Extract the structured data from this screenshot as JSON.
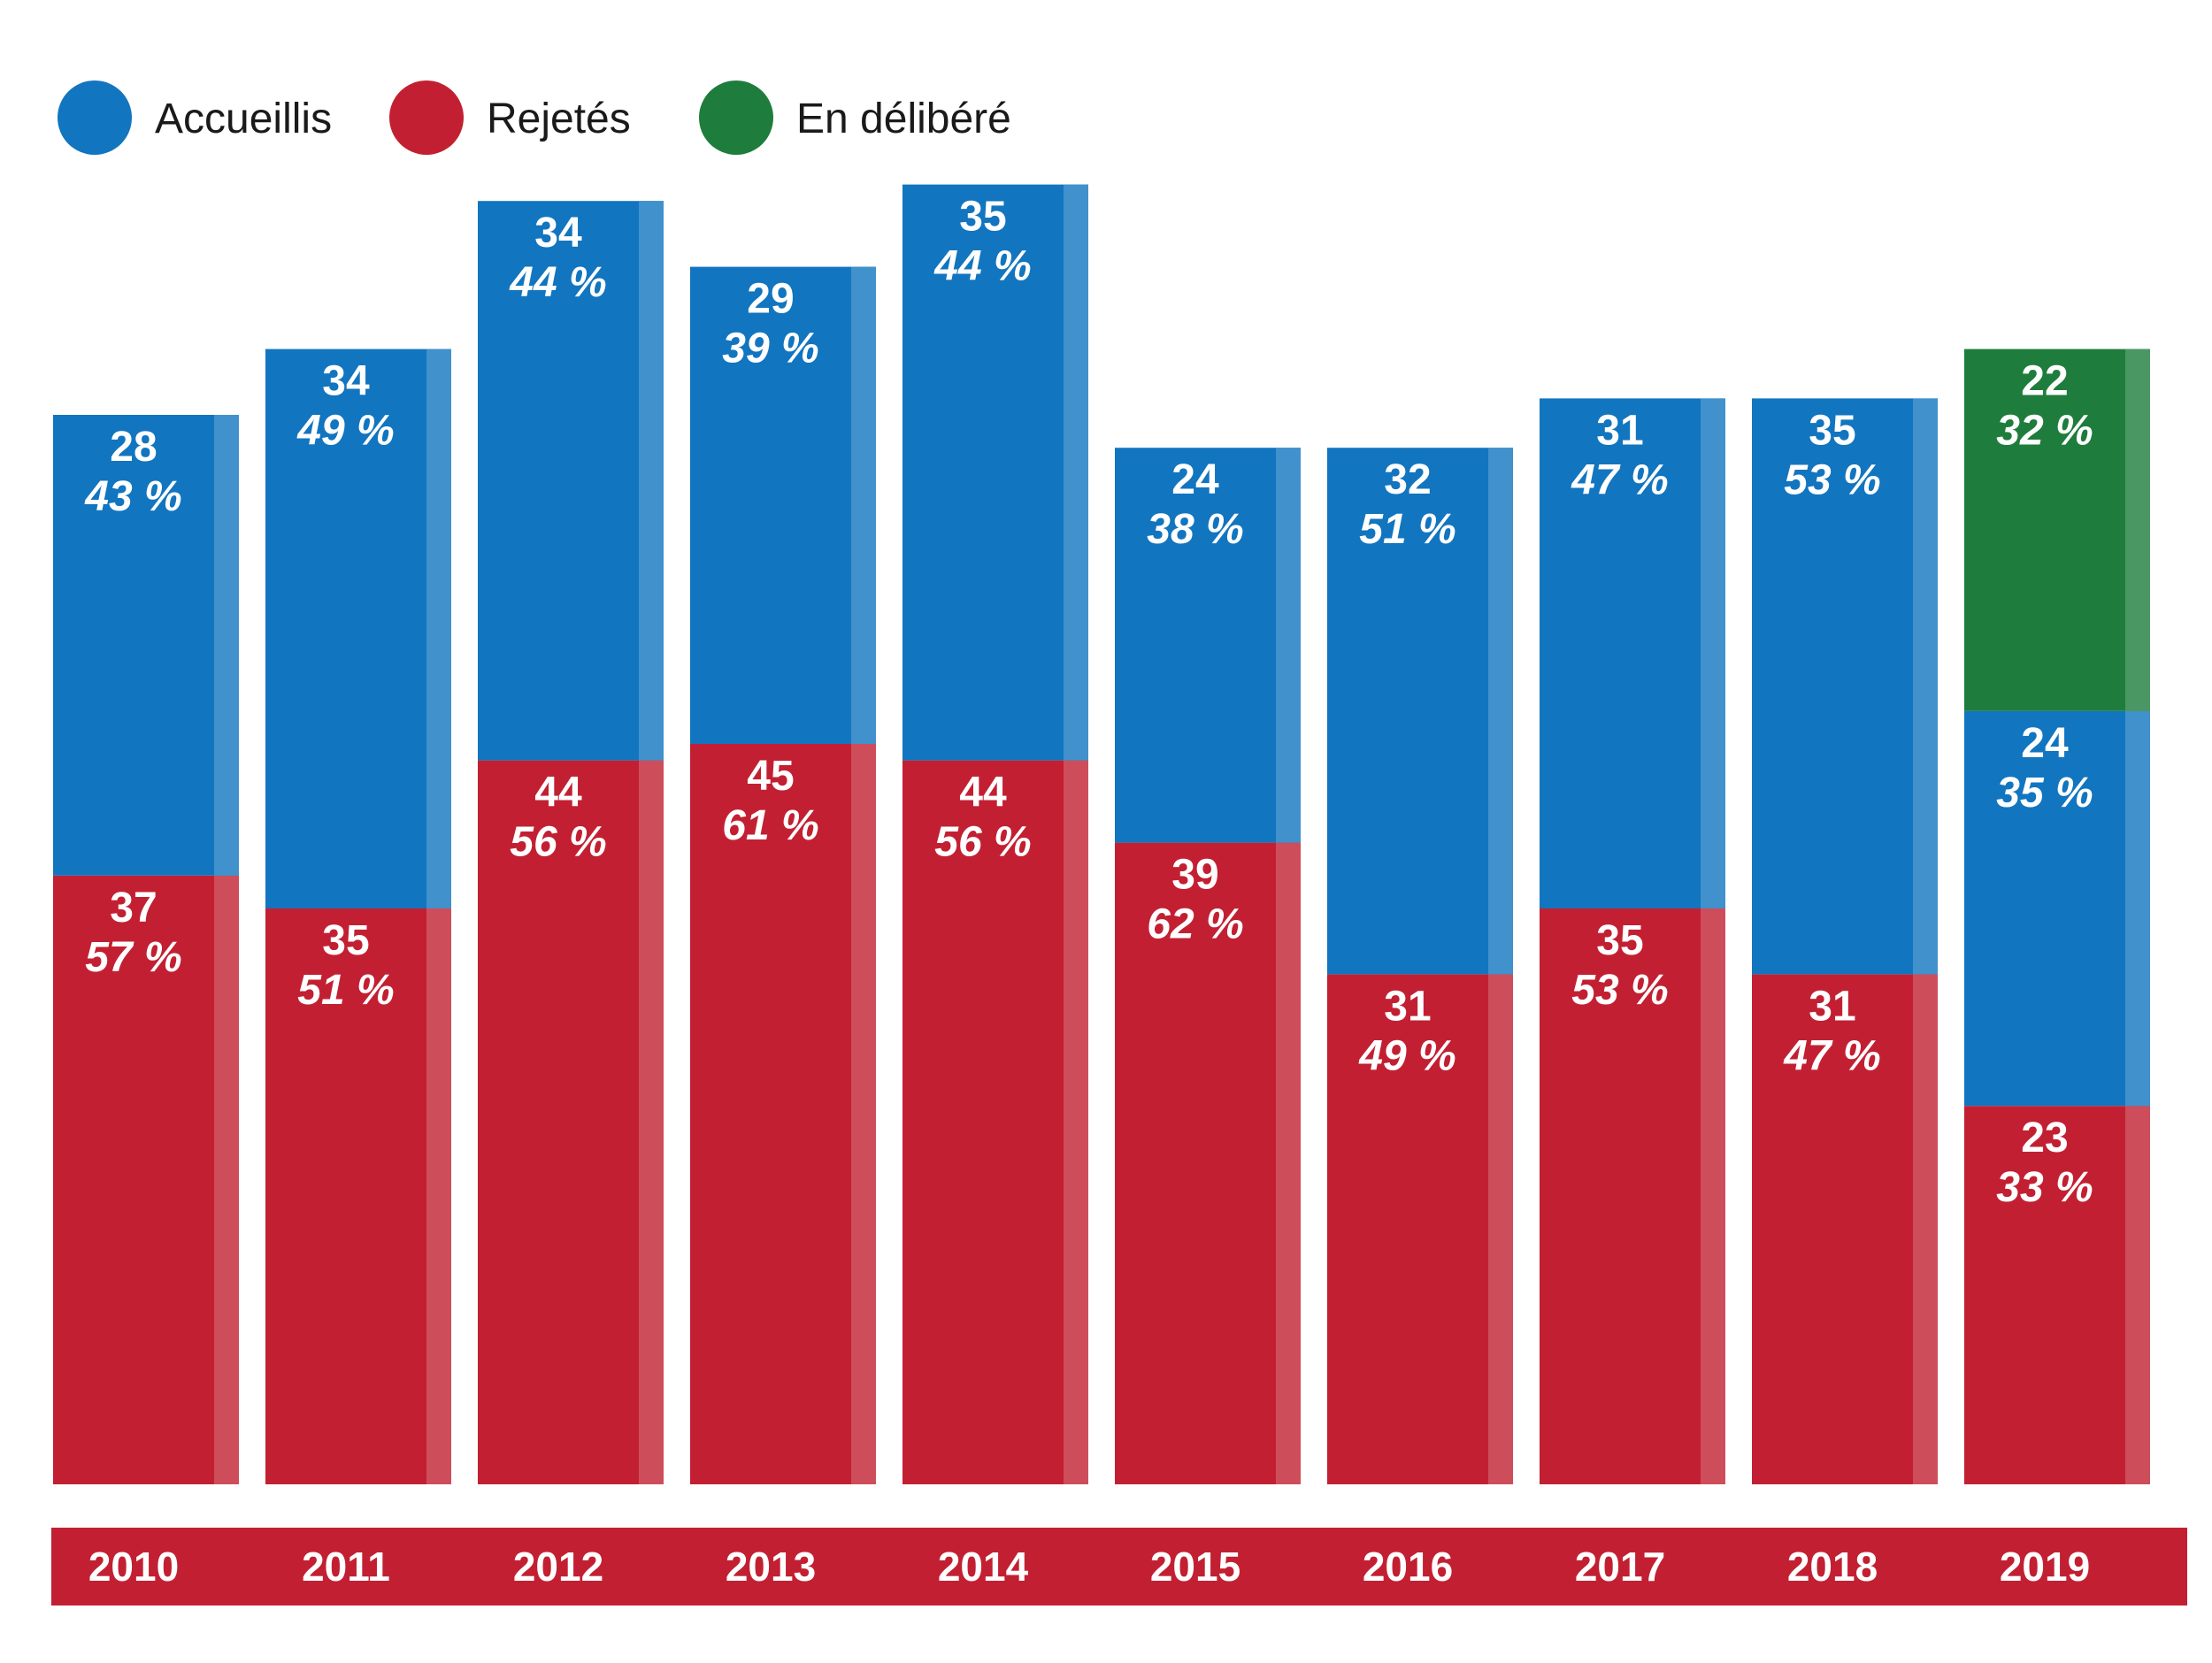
{
  "chart_data": {
    "type": "bar",
    "stacked": true,
    "categories": [
      "2010",
      "2011",
      "2012",
      "2013",
      "2014",
      "2015",
      "2016",
      "2017",
      "2018",
      "2019"
    ],
    "series": [
      {
        "name": "Rejetés",
        "color": "#c22032",
        "values": [
          37,
          35,
          44,
          45,
          44,
          39,
          31,
          35,
          31,
          23
        ],
        "percent_labels": [
          "57 %",
          "51 %",
          "56 %",
          "61 %",
          "56 %",
          "62 %",
          "49 %",
          "53 %",
          "47 %",
          "33 %"
        ]
      },
      {
        "name": "Accueillis",
        "color": "#1275bf",
        "values": [
          28,
          34,
          34,
          29,
          35,
          24,
          32,
          31,
          35,
          24
        ],
        "percent_labels": [
          "43 %",
          "49 %",
          "44 %",
          "39 %",
          "44 %",
          "38 %",
          "51 %",
          "47 %",
          "53 %",
          "35 %"
        ]
      },
      {
        "name": "En délibéré",
        "color": "#1e7d3c",
        "values": [
          0,
          0,
          0,
          0,
          0,
          0,
          0,
          0,
          0,
          22
        ],
        "percent_labels": [
          "",
          "",
          "",
          "",
          "",
          "",
          "",
          "",
          "",
          "32 %"
        ]
      }
    ],
    "ylim": [
      0,
      80
    ],
    "grid": false,
    "legend_position": "top-left",
    "category_band_color": "#c22032"
  }
}
